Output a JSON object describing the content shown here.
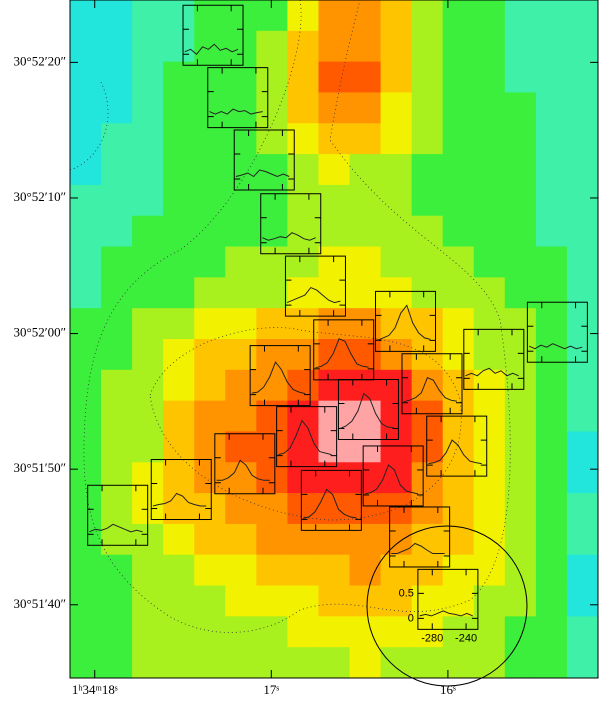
{
  "chart_data": {
    "type": "heatmap",
    "xlim": [
      18.14,
      15.15
    ],
    "ylim": [
      34.6,
      84.6
    ],
    "xticks": [
      {
        "value": 18,
        "label": "1ʰ34ᵐ18ˢ"
      },
      {
        "value": 17,
        "label": "17ˢ"
      },
      {
        "value": 16,
        "label": "16ˢ"
      }
    ],
    "yticks": [
      {
        "value": 80,
        "label": "30°52′20″"
      },
      {
        "value": 70,
        "label": "30°52′10″"
      },
      {
        "value": 60,
        "label": "30°52′00″"
      },
      {
        "value": 50,
        "label": "30°51′50″"
      },
      {
        "value": 40,
        "label": "30°51′40″"
      }
    ],
    "colormap": [
      "#22e5dc",
      "#3ef0a8",
      "#3cef3c",
      "#a8f01e",
      "#f2f200",
      "#ffc400",
      "#ff9400",
      "#ff5a00",
      "#ff1e1e",
      "#ffa4a4"
    ],
    "z": [
      [
        0,
        0,
        1,
        1,
        2,
        2,
        2,
        4,
        6,
        6,
        5,
        3,
        2,
        2,
        1,
        1,
        1
      ],
      [
        0,
        0,
        1,
        1,
        2,
        2,
        3,
        5,
        6,
        6,
        5,
        3,
        2,
        2,
        1,
        1,
        1
      ],
      [
        0,
        0,
        1,
        2,
        2,
        2,
        3,
        5,
        7,
        7,
        5,
        3,
        2,
        2,
        1,
        1,
        1
      ],
      [
        0,
        0,
        1,
        2,
        2,
        2,
        3,
        5,
        6,
        6,
        4,
        3,
        2,
        2,
        2,
        1,
        1
      ],
      [
        0,
        1,
        1,
        2,
        2,
        2,
        3,
        4,
        5,
        5,
        4,
        3,
        2,
        2,
        2,
        1,
        1
      ],
      [
        0,
        1,
        1,
        2,
        2,
        2,
        2,
        3,
        4,
        3,
        3,
        2,
        2,
        2,
        2,
        1,
        1
      ],
      [
        1,
        1,
        1,
        2,
        2,
        2,
        2,
        3,
        3,
        3,
        3,
        2,
        2,
        2,
        2,
        1,
        1
      ],
      [
        1,
        1,
        2,
        2,
        2,
        2,
        2,
        3,
        3,
        3,
        3,
        3,
        2,
        2,
        2,
        1,
        1
      ],
      [
        1,
        2,
        2,
        2,
        2,
        3,
        3,
        3,
        4,
        4,
        3,
        3,
        3,
        2,
        2,
        2,
        1
      ],
      [
        1,
        2,
        2,
        2,
        3,
        3,
        3,
        4,
        4,
        4,
        4,
        3,
        3,
        3,
        2,
        2,
        1
      ],
      [
        2,
        2,
        3,
        3,
        4,
        4,
        5,
        5,
        6,
        6,
        5,
        5,
        4,
        3,
        3,
        2,
        1
      ],
      [
        2,
        2,
        3,
        4,
        5,
        5,
        6,
        6,
        7,
        7,
        6,
        5,
        4,
        3,
        3,
        2,
        1
      ],
      [
        2,
        3,
        3,
        4,
        5,
        6,
        6,
        7,
        8,
        8,
        8,
        6,
        5,
        4,
        3,
        2,
        1
      ],
      [
        2,
        3,
        3,
        5,
        6,
        6,
        7,
        8,
        9,
        9,
        8,
        7,
        5,
        4,
        3,
        2,
        1
      ],
      [
        2,
        3,
        3,
        5,
        6,
        7,
        7,
        8,
        9,
        9,
        8,
        7,
        5,
        4,
        3,
        2,
        0
      ],
      [
        2,
        3,
        4,
        5,
        6,
        6,
        7,
        8,
        8,
        8,
        8,
        6,
        5,
        4,
        3,
        2,
        0
      ],
      [
        2,
        3,
        4,
        5,
        5,
        6,
        6,
        7,
        7,
        7,
        7,
        6,
        5,
        4,
        3,
        2,
        1
      ],
      [
        2,
        3,
        3,
        4,
        5,
        5,
        6,
        6,
        6,
        6,
        6,
        5,
        5,
        4,
        3,
        2,
        1
      ],
      [
        2,
        2,
        3,
        3,
        4,
        4,
        5,
        5,
        5,
        6,
        5,
        5,
        4,
        4,
        3,
        2,
        0
      ],
      [
        2,
        2,
        3,
        3,
        3,
        4,
        4,
        4,
        5,
        5,
        5,
        4,
        4,
        3,
        3,
        2,
        0
      ],
      [
        2,
        2,
        3,
        3,
        3,
        3,
        3,
        4,
        4,
        4,
        4,
        4,
        3,
        3,
        2,
        2,
        1
      ],
      [
        2,
        2,
        3,
        3,
        3,
        3,
        3,
        3,
        3,
        4,
        3,
        3,
        3,
        3,
        2,
        2,
        1
      ]
    ],
    "spec_x": [
      -295,
      -288,
      -281,
      -274,
      -267,
      -260,
      -253,
      -246,
      -239,
      -232
    ],
    "spec_xlim": [
      -297,
      -226
    ],
    "spec_ylim": [
      -0.22,
      0.98
    ],
    "spec_xticks": [
      -280,
      -240
    ],
    "spec_yticks": [
      0,
      0.5
    ],
    "spec_labeled": 20,
    "spectra": [
      {
        "ra": 17.33,
        "dec": 82.0,
        "values": [
          0.05,
          0.1,
          0.0,
          0.15,
          0.1,
          0.2,
          0.08,
          0.12,
          0.05,
          0.1
        ]
      },
      {
        "ra": 17.19,
        "dec": 77.4,
        "values": [
          0.1,
          0.05,
          0.1,
          0.05,
          0.15,
          0.1,
          0.12,
          0.05,
          0.08,
          0.1
        ]
      },
      {
        "ra": 17.04,
        "dec": 72.8,
        "values": [
          0.05,
          0.08,
          0.12,
          0.05,
          0.18,
          0.15,
          0.1,
          0.05,
          0.1,
          0.05
        ]
      },
      {
        "ra": 16.89,
        "dec": 68.1,
        "values": [
          0.1,
          0.05,
          0.08,
          0.12,
          0.1,
          0.2,
          0.15,
          0.08,
          0.05,
          0.1
        ]
      },
      {
        "ra": 16.75,
        "dec": 63.5,
        "values": [
          0.05,
          0.1,
          0.15,
          0.2,
          0.35,
          0.3,
          0.2,
          0.1,
          0.05,
          0.08
        ]
      },
      {
        "ra": 16.24,
        "dec": 60.9,
        "values": [
          0.0,
          0.05,
          0.1,
          0.25,
          0.55,
          0.7,
          0.35,
          0.15,
          0.05,
          0.02
        ]
      },
      {
        "ra": 16.59,
        "dec": 58.8,
        "values": [
          0.02,
          0.05,
          0.12,
          0.3,
          0.6,
          0.55,
          0.3,
          0.1,
          0.05,
          0.03
        ]
      },
      {
        "ra": 16.95,
        "dec": 56.9,
        "values": [
          0.03,
          0.05,
          0.15,
          0.35,
          0.65,
          0.5,
          0.25,
          0.1,
          0.05,
          0.02
        ]
      },
      {
        "ra": 15.74,
        "dec": 58.1,
        "values": [
          0.05,
          0.1,
          0.05,
          0.15,
          0.2,
          0.1,
          0.15,
          0.05,
          0.1,
          0.05
        ]
      },
      {
        "ra": 15.38,
        "dec": 60.1,
        "values": [
          0.1,
          0.05,
          0.12,
          0.08,
          0.15,
          0.1,
          0.05,
          0.1,
          0.05,
          0.08
        ]
      },
      {
        "ra": 16.09,
        "dec": 56.3,
        "values": [
          0.02,
          0.05,
          0.1,
          0.2,
          0.5,
          0.45,
          0.25,
          0.1,
          0.05,
          0.03
        ]
      },
      {
        "ra": 16.45,
        "dec": 54.4,
        "values": [
          0.0,
          0.05,
          0.15,
          0.35,
          0.7,
          0.6,
          0.3,
          0.1,
          0.03,
          0.02
        ]
      },
      {
        "ra": 16.8,
        "dec": 52.4,
        "values": [
          0.02,
          0.05,
          0.15,
          0.4,
          0.7,
          0.55,
          0.25,
          0.08,
          0.05,
          0.02
        ]
      },
      {
        "ra": 15.95,
        "dec": 51.7,
        "values": [
          0.03,
          0.05,
          0.1,
          0.25,
          0.5,
          0.4,
          0.2,
          0.08,
          0.05,
          0.03
        ]
      },
      {
        "ra": 17.15,
        "dec": 50.4,
        "values": [
          0.05,
          0.05,
          0.1,
          0.2,
          0.45,
          0.35,
          0.15,
          0.08,
          0.05,
          0.05
        ]
      },
      {
        "ra": 16.31,
        "dec": 49.5,
        "values": [
          0.02,
          0.05,
          0.12,
          0.3,
          0.6,
          0.5,
          0.2,
          0.08,
          0.05,
          0.02
        ]
      },
      {
        "ra": 17.51,
        "dec": 48.5,
        "values": [
          0.05,
          0.08,
          0.1,
          0.15,
          0.3,
          0.25,
          0.12,
          0.08,
          0.05,
          0.05
        ]
      },
      {
        "ra": 17.87,
        "dec": 46.6,
        "values": [
          0.05,
          0.1,
          0.08,
          0.12,
          0.2,
          0.15,
          0.1,
          0.05,
          0.08,
          0.05
        ]
      },
      {
        "ra": 16.66,
        "dec": 47.7,
        "values": [
          0.02,
          0.05,
          0.15,
          0.35,
          0.6,
          0.5,
          0.2,
          0.1,
          0.05,
          0.03
        ]
      },
      {
        "ra": 16.16,
        "dec": 45.0,
        "values": [
          0.05,
          0.05,
          0.1,
          0.15,
          0.25,
          0.2,
          0.12,
          0.05,
          0.05,
          0.05
        ]
      },
      {
        "ra": 16.0,
        "dec": 40.4,
        "values": [
          0.05,
          0.08,
          0.05,
          0.1,
          0.15,
          0.1,
          0.08,
          0.05,
          0.1,
          0.05
        ]
      }
    ]
  }
}
